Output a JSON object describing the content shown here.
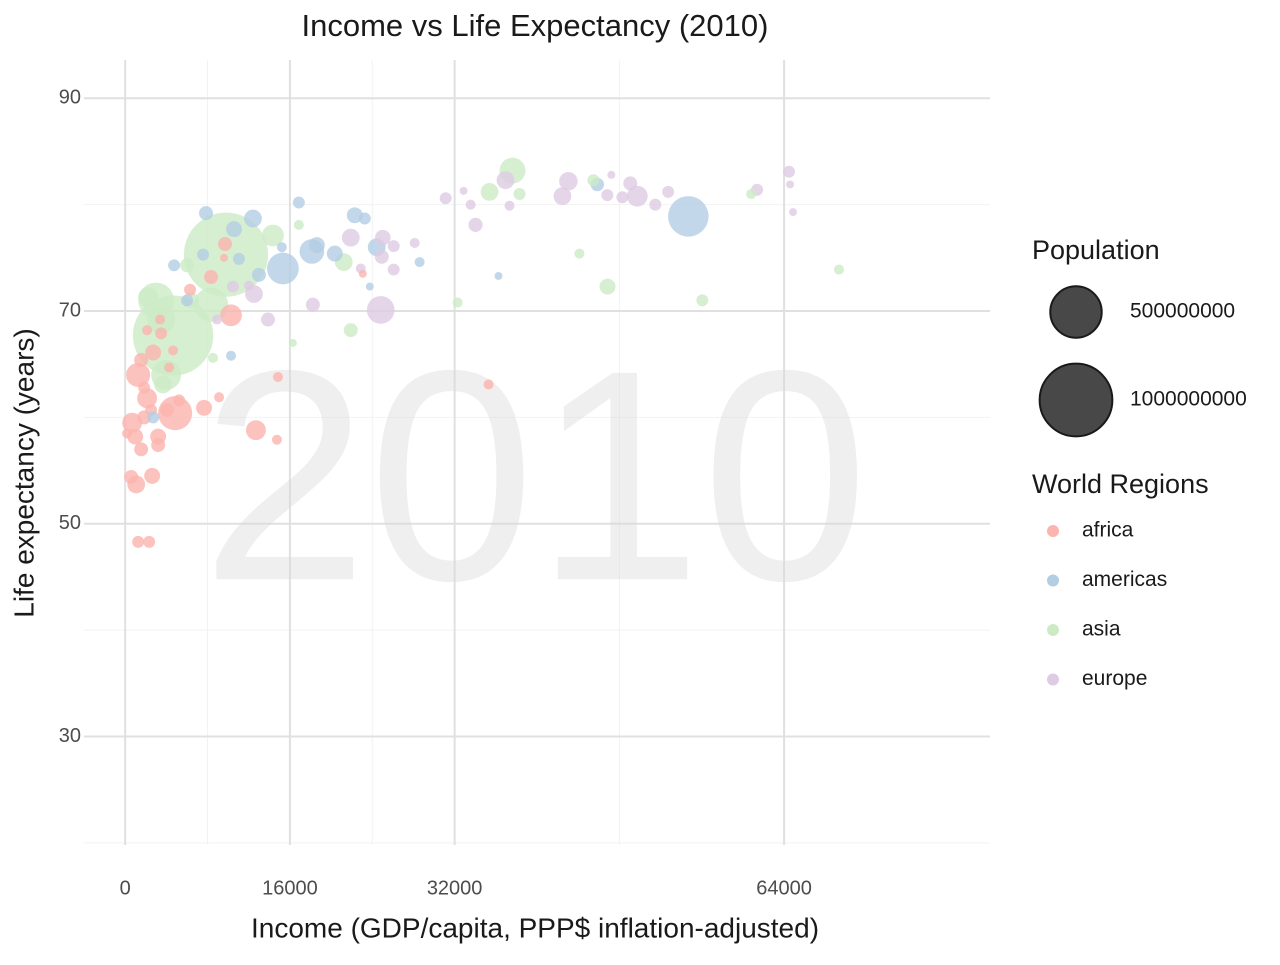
{
  "chart_data": {
    "type": "scatter",
    "title": "Income vs Life Expectancy (2010)",
    "watermark": "2010",
    "x_label": "Income (GDP/capita, PPP$ inflation-adjusted)",
    "y_label": "Life expectancy (years)",
    "xlim": [
      -4000,
      84000
    ],
    "ylim": [
      19.8,
      93.6
    ],
    "xticks": [
      0,
      16000,
      32000,
      64000
    ],
    "yticks": [
      30,
      50,
      70,
      90
    ],
    "x_minor_ticks": [
      8000,
      24000,
      48000
    ],
    "y_minor_ticks": [
      20,
      40,
      60,
      80
    ],
    "grid": true,
    "size_legend": {
      "title": "Population",
      "values": [
        500000000,
        1000000000
      ]
    },
    "legend_title": "World Regions",
    "series": [
      {
        "name": "africa",
        "color": "#fbb4ae",
        "x": [
          1260,
          680,
          970,
          1550,
          1070,
          580,
          1260,
          2330,
          2620,
          3200,
          3200,
          2130,
          1550,
          2720,
          3390,
          3490,
          4850,
          4070,
          5240,
          7660,
          9120,
          12700,
          14740,
          14840,
          10280,
          8340,
          9700,
          6300,
          23080,
          35300,
          2130,
          1840,
          4270,
          2520,
          1840,
          190,
          4650,
          9600
        ],
        "y": [
          64.0,
          59.5,
          58.2,
          57.0,
          53.7,
          54.4,
          48.3,
          48.3,
          54.5,
          58.2,
          57.4,
          61.8,
          65.4,
          66.1,
          69.2,
          67.9,
          60.4,
          60.7,
          61.6,
          60.9,
          61.9,
          58.8,
          57.9,
          63.8,
          69.6,
          73.2,
          76.3,
          72.0,
          73.5,
          63.1,
          68.2,
          62.8,
          64.7,
          60.7,
          60.0,
          58.5,
          66.3,
          75.0
        ],
        "size": [
          110000000,
          75000000,
          48000000,
          37000000,
          60000000,
          37000000,
          27000000,
          27000000,
          48000000,
          48000000,
          37000000,
          75000000,
          37000000,
          48000000,
          19000000,
          27000000,
          220000000,
          37000000,
          27000000,
          48000000,
          19000000,
          75000000,
          19000000,
          19000000,
          90000000,
          37000000,
          37000000,
          27000000,
          12000000,
          19000000,
          19000000,
          27000000,
          19000000,
          27000000,
          37000000,
          19000000,
          19000000,
          12000000
        ]
      },
      {
        "name": "americas",
        "color": "#b3cde3",
        "x": [
          54700,
          15320,
          18130,
          45860,
          12410,
          10570,
          7850,
          22300,
          23270,
          24430,
          20360,
          16870,
          12990,
          11050,
          4750,
          7560,
          10280,
          2720,
          28600,
          36260,
          23760,
          15220,
          18620,
          6010
        ],
        "y": [
          78.9,
          74.0,
          75.6,
          81.9,
          78.7,
          77.7,
          79.2,
          79.0,
          78.7,
          76.0,
          75.4,
          80.2,
          73.4,
          74.9,
          74.3,
          75.3,
          65.8,
          60.0,
          74.6,
          73.3,
          72.3,
          76.0,
          76.2,
          71.0
        ],
        "size": [
          310000000,
          190000000,
          115000000,
          34000000,
          60000000,
          48000000,
          37000000,
          48000000,
          27000000,
          60000000,
          48000000,
          27000000,
          37000000,
          27000000,
          27000000,
          27000000,
          19000000,
          27000000,
          19000000,
          12000000,
          12000000,
          19000000,
          48000000,
          27000000
        ]
      },
      {
        "name": "asia",
        "color": "#ccebc5",
        "x": [
          9790,
          4650,
          3000,
          3980,
          3490,
          8340,
          14350,
          37620,
          35390,
          46850,
          56060,
          32290,
          21910,
          21230,
          44120,
          38300,
          60800,
          69330,
          45480,
          8530,
          16290,
          16870,
          6400,
          2230,
          3680,
          6010
        ],
        "y": [
          75.3,
          67.7,
          71.0,
          64.0,
          69.2,
          70.6,
          77.1,
          83.2,
          81.2,
          72.3,
          71.0,
          70.8,
          68.2,
          74.6,
          75.4,
          81.0,
          81.0,
          73.9,
          82.3,
          65.6,
          67.0,
          78.1,
          71.0,
          71.3,
          63.1,
          74.3
        ],
        "size": [
          1340000000,
          1220000000,
          240000000,
          170000000,
          150000000,
          220000000,
          90000000,
          127000000,
          60000000,
          48000000,
          27000000,
          19000000,
          37000000,
          60000000,
          19000000,
          27000000,
          19000000,
          19000000,
          27000000,
          19000000,
          12000000,
          19000000,
          48000000,
          75000000,
          60000000,
          37000000
        ]
      },
      {
        "name": "europe",
        "color": "#decbe4",
        "x": [
          24820,
          49740,
          43050,
          42470,
          36940,
          21910,
          12510,
          25020,
          34030,
          31130,
          46830,
          48290,
          49060,
          51490,
          52740,
          61380,
          64480,
          64580,
          64870,
          47220,
          32870,
          33550,
          37330,
          13870,
          18230,
          26080,
          24920,
          28120,
          26080,
          22880,
          8920,
          10470,
          12020
        ],
        "y": [
          70.1,
          80.8,
          82.2,
          80.8,
          82.3,
          76.9,
          71.6,
          76.9,
          78.1,
          80.6,
          80.9,
          80.7,
          82.0,
          80.0,
          81.2,
          81.4,
          83.1,
          81.9,
          79.3,
          82.8,
          81.3,
          80.0,
          79.9,
          69.2,
          70.6,
          73.9,
          75.1,
          76.4,
          76.1,
          74.0,
          69.2,
          72.3,
          72.4
        ],
        "size": [
          145000000,
          82000000,
          65000000,
          60000000,
          60000000,
          60000000,
          60000000,
          46000000,
          38000000,
          27000000,
          27000000,
          27000000,
          37000000,
          27000000,
          27000000,
          27000000,
          27000000,
          12000000,
          12000000,
          12000000,
          12000000,
          19000000,
          19000000,
          37000000,
          37000000,
          27000000,
          37000000,
          19000000,
          27000000,
          19000000,
          19000000,
          27000000,
          19000000
        ]
      }
    ]
  }
}
